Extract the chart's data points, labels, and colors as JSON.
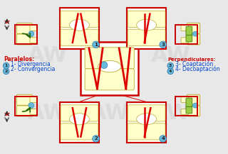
{
  "bg_color": "#e8e8e8",
  "labels": {
    "paralelos": "Paralelos:",
    "perpendiculares": "Perpendiculares:",
    "divergencia": "1- Divergencia",
    "convergencia": "2- Convergencia",
    "coaptacion": "3- Coaptación",
    "decoaptacion": "4- Decoaptación"
  },
  "label_color_red": "#cc0000",
  "label_color_blue": "#0044cc",
  "circle_color": "#66bbdd",
  "box_color": "#cc0000",
  "vertebra_fill": "#ffffcc",
  "vertebra_edge": "#bbaa33",
  "green_fill": "#99cc44",
  "green_dark": "#336600",
  "arrow_green": "#226600",
  "star_color": "#cc0000",
  "watermark_color": "#d0d0d0",
  "line_red": "#dd0000"
}
